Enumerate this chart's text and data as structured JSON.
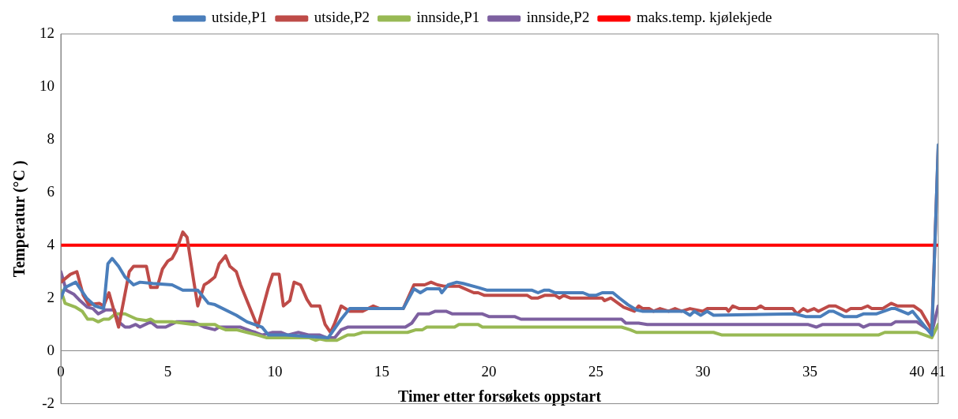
{
  "chart_data": {
    "type": "line",
    "xlabel": "Timer etter forsøkets oppstart",
    "ylabel": "Temperatur (°C )",
    "xlim": [
      0,
      41
    ],
    "xticks": [
      0,
      5,
      10,
      15,
      20,
      25,
      30,
      35,
      40,
      41
    ],
    "ylim": [
      -2,
      12
    ],
    "yticks": [
      -2,
      0,
      2,
      4,
      6,
      8,
      10,
      12
    ],
    "grid": false,
    "legend": "top",
    "marker": "none",
    "line_style": "solid",
    "series": [
      {
        "name": "utside,P1",
        "color": "#4a7ebb",
        "x": [
          0,
          0.2,
          0.7,
          1.2,
          1.6,
          2.0,
          2.2,
          2.4,
          2.7,
          3.0,
          3.4,
          3.7,
          4.3,
          5.2,
          5.7,
          6.4,
          6.9,
          7.2,
          8.2,
          8.7,
          9.4,
          9.7,
          10.5,
          12.5,
          13.1,
          13.5,
          16.0,
          16.5,
          16.8,
          17.1,
          17.7,
          17.8,
          18.1,
          18.5,
          18.8,
          19.5,
          19.9,
          22.0,
          22.3,
          22.6,
          22.8,
          23.1,
          24.4,
          24.7,
          25.0,
          25.3,
          25.8,
          26.1,
          26.5,
          26.9,
          27.2,
          29.1,
          29.4,
          29.6,
          29.9,
          30.2,
          30.5,
          34.3,
          34.8,
          35.5,
          35.9,
          36.1,
          36.6,
          37.2,
          37.5,
          38.1,
          38.8,
          39.0,
          39.6,
          39.8,
          40.7,
          41
        ],
        "values": [
          2.0,
          2.4,
          2.6,
          2.0,
          1.7,
          1.6,
          3.3,
          3.5,
          3.2,
          2.8,
          2.5,
          2.6,
          2.55,
          2.5,
          2.3,
          2.3,
          1.8,
          1.75,
          1.35,
          1.1,
          0.9,
          0.6,
          0.6,
          0.5,
          1.2,
          1.6,
          1.6,
          2.35,
          2.2,
          2.35,
          2.35,
          2.2,
          2.5,
          2.6,
          2.55,
          2.4,
          2.3,
          2.3,
          2.2,
          2.3,
          2.3,
          2.2,
          2.2,
          2.1,
          2.1,
          2.2,
          2.2,
          2.0,
          1.75,
          1.55,
          1.5,
          1.5,
          1.35,
          1.5,
          1.35,
          1.5,
          1.35,
          1.4,
          1.3,
          1.3,
          1.5,
          1.5,
          1.3,
          1.3,
          1.4,
          1.4,
          1.6,
          1.6,
          1.4,
          1.5,
          0.6,
          7.8
        ]
      },
      {
        "name": "utside,P2",
        "color": "#be4b48",
        "x": [
          0,
          0.45,
          0.75,
          1.05,
          1.3,
          1.8,
          2.0,
          2.25,
          2.7,
          3.2,
          3.4,
          4.0,
          4.2,
          4.5,
          4.75,
          5.0,
          5.2,
          5.4,
          5.7,
          5.9,
          6.2,
          6.4,
          6.7,
          6.9,
          7.2,
          7.4,
          7.7,
          7.9,
          8.2,
          8.4,
          9.2,
          9.4,
          9.7,
          9.9,
          10.2,
          10.4,
          10.7,
          10.9,
          11.2,
          11.5,
          11.7,
          12.1,
          12.35,
          12.6,
          12.8,
          13.1,
          13.5,
          14.1,
          14.6,
          14.9,
          16.0,
          16.5,
          17.0,
          17.3,
          17.6,
          17.9,
          18.6,
          19.3,
          19.5,
          19.8,
          21.8,
          22.0,
          22.3,
          22.6,
          23.1,
          23.3,
          23.5,
          23.8,
          25.3,
          25.4,
          25.7,
          26.3,
          26.8,
          27.0,
          27.2,
          27.5,
          27.7,
          28.0,
          28.4,
          28.7,
          29.0,
          29.4,
          30.0,
          30.2,
          31.1,
          31.2,
          31.4,
          31.7,
          32.5,
          32.7,
          32.9,
          34.2,
          34.4,
          34.7,
          34.9,
          35.2,
          35.4,
          35.9,
          36.2,
          36.7,
          36.9,
          37.4,
          37.7,
          37.9,
          38.4,
          38.8,
          39.1,
          39.85,
          40.2,
          40.7,
          41
        ],
        "values": [
          2.6,
          2.9,
          3.0,
          2.1,
          1.75,
          1.8,
          1.7,
          2.2,
          0.9,
          3.0,
          3.2,
          3.2,
          2.4,
          2.4,
          3.1,
          3.4,
          3.5,
          3.8,
          4.5,
          4.3,
          2.7,
          1.7,
          2.5,
          2.6,
          2.8,
          3.3,
          3.6,
          3.2,
          3.0,
          2.5,
          0.9,
          1.5,
          2.4,
          2.9,
          2.9,
          1.7,
          1.9,
          2.6,
          2.5,
          1.95,
          1.7,
          1.7,
          1.0,
          0.7,
          1.05,
          1.7,
          1.5,
          1.5,
          1.7,
          1.6,
          1.6,
          2.5,
          2.5,
          2.6,
          2.5,
          2.45,
          2.45,
          2.2,
          2.2,
          2.1,
          2.1,
          2.0,
          2.0,
          2.1,
          2.1,
          2.0,
          2.1,
          2.0,
          2.0,
          1.9,
          2.0,
          1.65,
          1.5,
          1.7,
          1.6,
          1.6,
          1.5,
          1.6,
          1.5,
          1.6,
          1.5,
          1.6,
          1.5,
          1.6,
          1.6,
          1.5,
          1.7,
          1.6,
          1.6,
          1.7,
          1.6,
          1.6,
          1.4,
          1.6,
          1.5,
          1.6,
          1.5,
          1.7,
          1.7,
          1.5,
          1.6,
          1.6,
          1.7,
          1.6,
          1.6,
          1.8,
          1.7,
          1.7,
          1.5,
          0.8,
          7.7
        ]
      },
      {
        "name": "innside,P1",
        "color": "#98b954",
        "x": [
          0,
          0.2,
          0.7,
          1.0,
          1.25,
          1.5,
          1.75,
          2.0,
          2.25,
          2.55,
          3.0,
          3.55,
          4.0,
          4.2,
          4.4,
          5.2,
          6.2,
          7.2,
          7.4,
          7.7,
          8.2,
          8.7,
          9.2,
          9.6,
          11.6,
          11.9,
          12.1,
          12.4,
          12.9,
          13.4,
          13.7,
          14.1,
          16.2,
          16.6,
          16.9,
          17.1,
          18.4,
          18.6,
          19.5,
          19.7,
          26.2,
          26.6,
          26.9,
          30.5,
          30.9,
          38.2,
          38.5,
          40.0,
          40.7,
          41
        ],
        "values": [
          2.3,
          1.8,
          1.65,
          1.5,
          1.2,
          1.2,
          1.1,
          1.2,
          1.2,
          1.4,
          1.4,
          1.2,
          1.15,
          1.2,
          1.1,
          1.1,
          1.0,
          1.0,
          0.9,
          0.8,
          0.8,
          0.7,
          0.6,
          0.5,
          0.5,
          0.4,
          0.45,
          0.4,
          0.4,
          0.6,
          0.6,
          0.7,
          0.7,
          0.8,
          0.8,
          0.9,
          0.9,
          1.0,
          1.0,
          0.9,
          0.9,
          0.8,
          0.7,
          0.7,
          0.6,
          0.6,
          0.7,
          0.7,
          0.5,
          1.0
        ]
      },
      {
        "name": "innside,P2",
        "color": "#7d60a0",
        "x": [
          0,
          0.25,
          0.6,
          0.9,
          1.25,
          1.5,
          1.75,
          2.1,
          2.5,
          2.7,
          3.0,
          3.2,
          3.5,
          3.7,
          4.2,
          4.5,
          4.9,
          5.4,
          6.2,
          6.7,
          7.2,
          7.4,
          8.4,
          8.9,
          9.1,
          9.4,
          9.9,
          10.3,
          10.6,
          11.1,
          11.6,
          12.1,
          12.4,
          12.8,
          13.1,
          13.4,
          16.1,
          16.4,
          16.7,
          17.2,
          17.5,
          18.0,
          18.3,
          19.7,
          20.0,
          21.2,
          21.5,
          26.2,
          26.4,
          27.0,
          27.4,
          34.9,
          35.3,
          35.6,
          37.3,
          37.5,
          37.8,
          38.8,
          39.0,
          40.0,
          40.7,
          41
        ],
        "values": [
          3.0,
          2.3,
          2.15,
          1.9,
          1.65,
          1.6,
          1.4,
          1.55,
          1.55,
          1.1,
          0.9,
          0.9,
          1.0,
          0.9,
          1.1,
          0.9,
          0.9,
          1.1,
          1.1,
          0.9,
          0.8,
          0.9,
          0.9,
          0.75,
          0.7,
          0.6,
          0.7,
          0.7,
          0.6,
          0.7,
          0.6,
          0.6,
          0.5,
          0.5,
          0.8,
          0.9,
          0.9,
          1.05,
          1.4,
          1.4,
          1.5,
          1.5,
          1.4,
          1.4,
          1.3,
          1.3,
          1.2,
          1.2,
          1.05,
          1.05,
          1.0,
          1.0,
          0.9,
          1.0,
          1.0,
          0.9,
          1.0,
          1.0,
          1.1,
          1.1,
          0.7,
          1.7
        ]
      },
      {
        "name": "maks.temp. kjølekjede",
        "color": "#ff0000",
        "x": [
          0,
          41
        ],
        "values": [
          4,
          4
        ]
      }
    ]
  }
}
